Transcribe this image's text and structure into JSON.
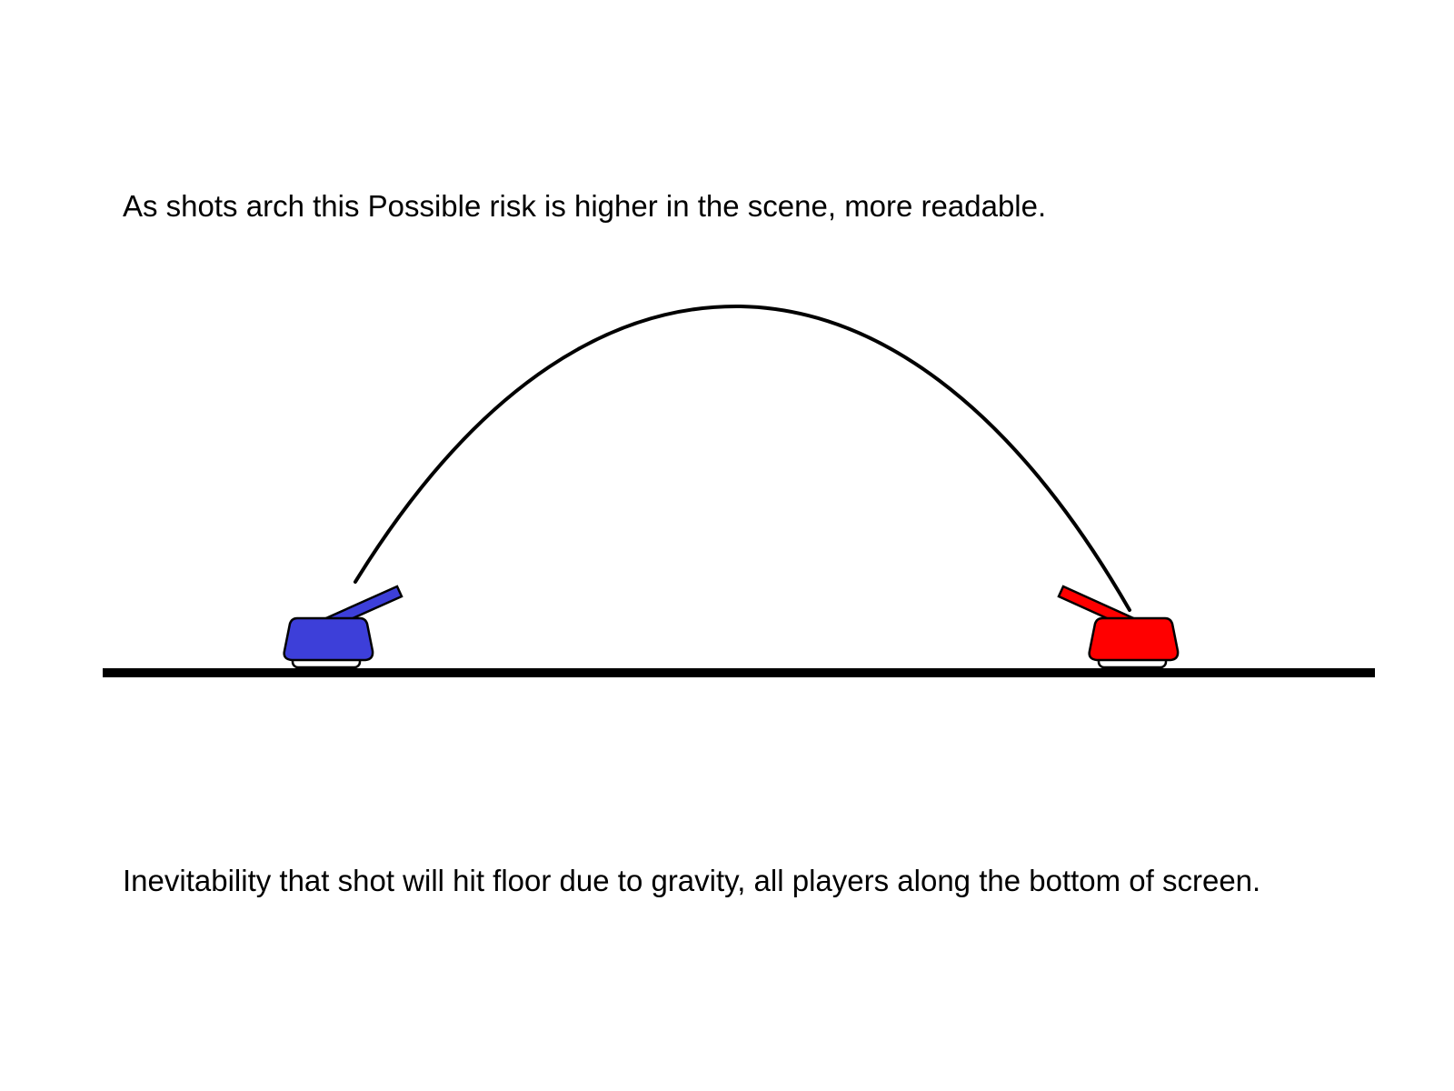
{
  "captions": {
    "top": "As shots arch this Possible risk is higher in the scene, more readable.",
    "bottom": "Inevitability that shot will hit floor due to gravity, all players along the bottom of screen."
  },
  "colors": {
    "background": "#ffffff",
    "ink": "#000000",
    "blue_tank": "#3d3fd9",
    "red_tank": "#ff0000"
  },
  "scene": {
    "ground": "ground-line",
    "trajectory": "arc-trajectory",
    "tanks": [
      {
        "side": "left",
        "team_color": "blue",
        "barrel_direction": "right"
      },
      {
        "side": "right",
        "team_color": "red",
        "barrel_direction": "left"
      }
    ]
  }
}
